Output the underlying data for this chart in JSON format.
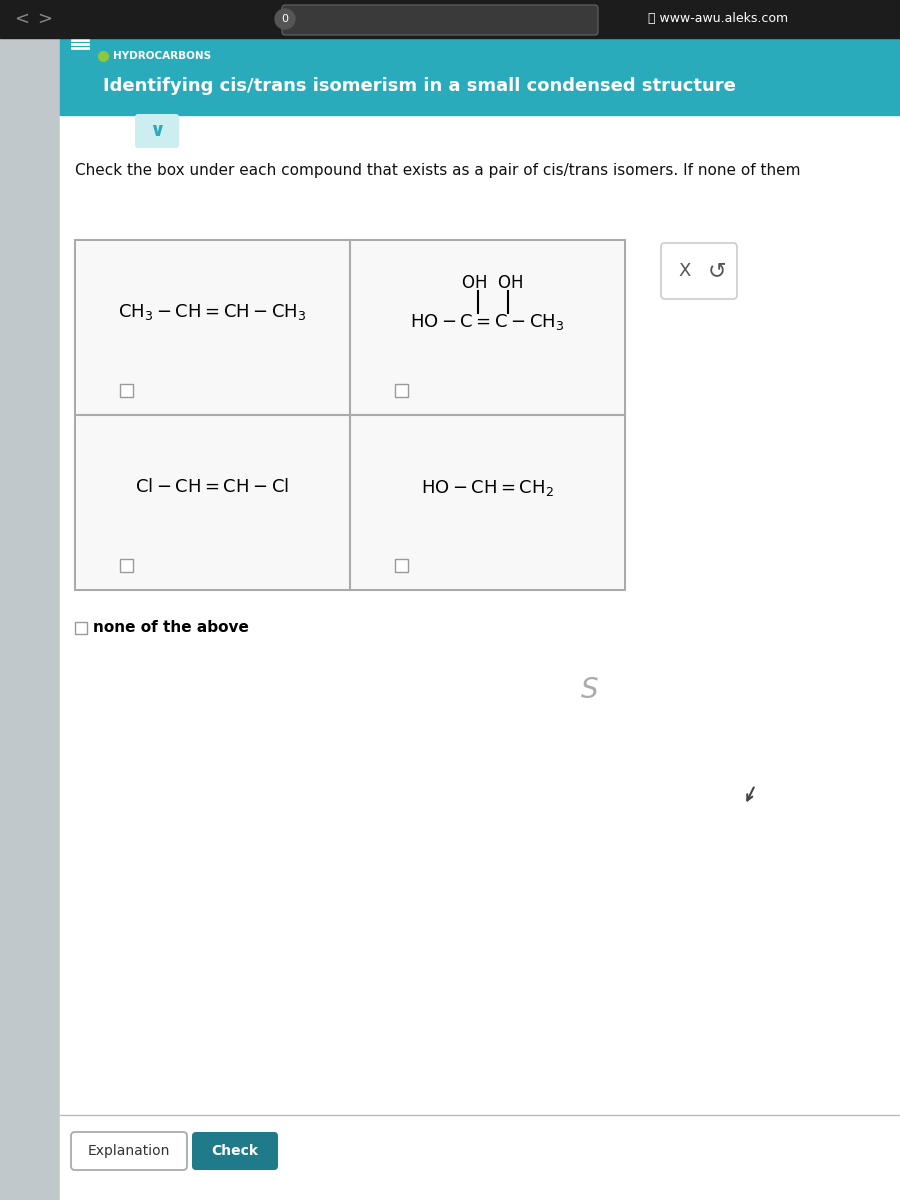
{
  "browser_bar_color": "#1c1c1c",
  "browser_url": "www-awu.aleks.com",
  "teal_header_color": "#2aabbb",
  "header_label": "HYDROCARBONS",
  "header_title": "Identifying cis/trans isomerism in a small condensed structure",
  "instruction_text": "Check the box under each compound that exists as a pair of cis/trans isomers. If none of them",
  "none_text": "none of the above",
  "explanation_btn": "Explanation",
  "check_btn": "Check",
  "check_btn_color": "#1f7a8a",
  "bg_color": "#d8d8d8",
  "content_bg": "#e4e4e4",
  "white": "#ffffff",
  "cell_bg": "#f2f2f2",
  "dark_text": "#111111",
  "border_color": "#aaaaaa",
  "left_panel_color": "#c0c8cc",
  "green_dot": "#8dc63f"
}
